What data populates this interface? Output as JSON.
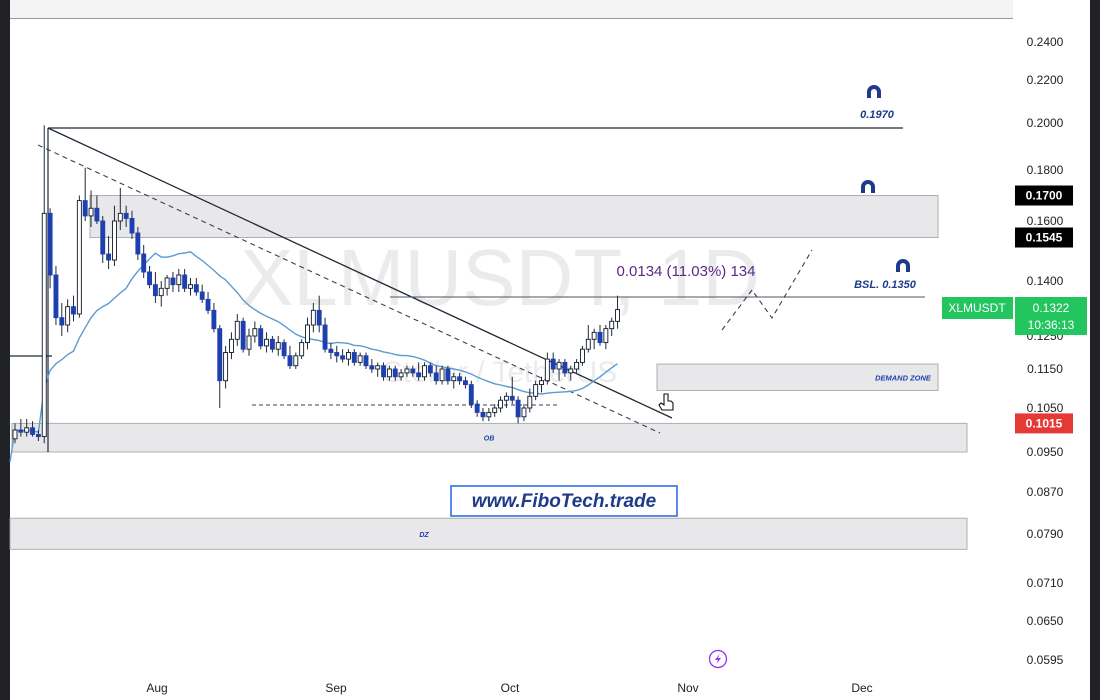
{
  "chart_data": {
    "type": "candlestick",
    "symbol": "XLMUSDT",
    "watermark_symbol": "XLMUSDT, 1D",
    "watermark_name": "Stellar / TetherUS",
    "x_labels": [
      "Aug",
      "Sep",
      "Oct",
      "Nov",
      "Dec"
    ],
    "y_ticks": [
      "0.2400",
      "0.2200",
      "0.2000",
      "0.1800",
      "0.1600",
      "0.1400",
      "0.1250",
      "0.1150",
      "0.1050",
      "0.0950",
      "0.0870",
      "0.0790",
      "0.0710",
      "0.0650",
      "0.0595"
    ],
    "price_badges": [
      {
        "label": "0.1700",
        "price": 0.17,
        "color": "#000000"
      },
      {
        "label": "0.1545",
        "price": 0.1545,
        "color": "#000000"
      },
      {
        "label": "0.1015",
        "price": 0.1015,
        "color": "#e53935"
      }
    ],
    "current": {
      "symbol": "XLMUSDT",
      "price": "0.1322",
      "countdown": "10:36:13",
      "color": "#22c55e"
    },
    "measure_label": "0.0134 (11.03%) 134",
    "levels": [
      {
        "label": "0.1970",
        "price": 0.197
      },
      {
        "label": "BSL. 0.1350",
        "price": 0.135
      }
    ],
    "zones": [
      {
        "label": "",
        "low": 0.1545,
        "high": 0.17
      },
      {
        "label": "DEMAND ZONE",
        "low": 0.1095,
        "high": 0.1165
      },
      {
        "label": "OB",
        "low": 0.095,
        "high": 0.1015
      },
      {
        "label": "DZ",
        "low": 0.0765,
        "high": 0.082
      }
    ],
    "watermark_link": "www.FiboTech.trade",
    "colors": {
      "up": "#ffffff",
      "down": "#1e40af",
      "wick": "#1f2937",
      "ma": "#5b9bd5",
      "accent": "#1e3a8a"
    },
    "candles": [
      {
        "o": 0.098,
        "h": 0.1015,
        "l": 0.097,
        "c": 0.1,
        "d": "Jul 22"
      },
      {
        "o": 0.1,
        "h": 0.1025,
        "l": 0.0985,
        "c": 0.0995,
        "d": "Jul 23"
      },
      {
        "o": 0.0995,
        "h": 0.1025,
        "l": 0.0985,
        "c": 0.1005,
        "d": "Jul 24"
      },
      {
        "o": 0.1005,
        "h": 0.102,
        "l": 0.0985,
        "c": 0.099,
        "d": "Jul 25"
      },
      {
        "o": 0.099,
        "h": 0.1,
        "l": 0.0975,
        "c": 0.0985,
        "d": "Jul 26"
      },
      {
        "o": 0.0985,
        "h": 0.199,
        "l": 0.097,
        "c": 0.163,
        "d": "Jul 27"
      },
      {
        "o": 0.163,
        "h": 0.165,
        "l": 0.138,
        "c": 0.142,
        "d": "Jul 28"
      },
      {
        "o": 0.142,
        "h": 0.145,
        "l": 0.128,
        "c": 0.13,
        "d": "Jul 29"
      },
      {
        "o": 0.13,
        "h": 0.134,
        "l": 0.125,
        "c": 0.128,
        "d": "Jul 30"
      },
      {
        "o": 0.128,
        "h": 0.135,
        "l": 0.126,
        "c": 0.133,
        "d": "Jul 31"
      },
      {
        "o": 0.133,
        "h": 0.136,
        "l": 0.129,
        "c": 0.131,
        "d": "Aug 1"
      },
      {
        "o": 0.131,
        "h": 0.17,
        "l": 0.13,
        "c": 0.168,
        "d": "Aug 2"
      },
      {
        "o": 0.168,
        "h": 0.181,
        "l": 0.16,
        "c": 0.162,
        "d": "Aug 3"
      },
      {
        "o": 0.162,
        "h": 0.172,
        "l": 0.158,
        "c": 0.165,
        "d": "Aug 4"
      },
      {
        "o": 0.165,
        "h": 0.17,
        "l": 0.159,
        "c": 0.16,
        "d": "Aug 5"
      },
      {
        "o": 0.16,
        "h": 0.162,
        "l": 0.146,
        "c": 0.149,
        "d": "Aug 6"
      },
      {
        "o": 0.149,
        "h": 0.155,
        "l": 0.144,
        "c": 0.147,
        "d": "Aug 7"
      },
      {
        "o": 0.147,
        "h": 0.166,
        "l": 0.145,
        "c": 0.16,
        "d": "Aug 8"
      },
      {
        "o": 0.16,
        "h": 0.173,
        "l": 0.157,
        "c": 0.163,
        "d": "Aug 9"
      },
      {
        "o": 0.163,
        "h": 0.166,
        "l": 0.158,
        "c": 0.161,
        "d": "Aug 10"
      },
      {
        "o": 0.161,
        "h": 0.164,
        "l": 0.154,
        "c": 0.156,
        "d": "Aug 11"
      },
      {
        "o": 0.156,
        "h": 0.158,
        "l": 0.147,
        "c": 0.149,
        "d": "Aug 12"
      },
      {
        "o": 0.149,
        "h": 0.152,
        "l": 0.141,
        "c": 0.143,
        "d": "Aug 13"
      },
      {
        "o": 0.143,
        "h": 0.145,
        "l": 0.138,
        "c": 0.139,
        "d": "Aug 14"
      },
      {
        "o": 0.139,
        "h": 0.143,
        "l": 0.134,
        "c": 0.136,
        "d": "Aug 15"
      },
      {
        "o": 0.136,
        "h": 0.14,
        "l": 0.133,
        "c": 0.138,
        "d": "Aug 16"
      },
      {
        "o": 0.138,
        "h": 0.142,
        "l": 0.136,
        "c": 0.141,
        "d": "Aug 17"
      },
      {
        "o": 0.141,
        "h": 0.143,
        "l": 0.137,
        "c": 0.139,
        "d": "Aug 18"
      },
      {
        "o": 0.139,
        "h": 0.144,
        "l": 0.137,
        "c": 0.142,
        "d": "Aug 19"
      },
      {
        "o": 0.142,
        "h": 0.144,
        "l": 0.137,
        "c": 0.138,
        "d": "Aug 20"
      },
      {
        "o": 0.138,
        "h": 0.141,
        "l": 0.136,
        "c": 0.139,
        "d": "Aug 21"
      },
      {
        "o": 0.139,
        "h": 0.141,
        "l": 0.136,
        "c": 0.137,
        "d": "Aug 22"
      },
      {
        "o": 0.137,
        "h": 0.139,
        "l": 0.134,
        "c": 0.135,
        "d": "Aug 23"
      },
      {
        "o": 0.135,
        "h": 0.137,
        "l": 0.131,
        "c": 0.132,
        "d": "Aug 24"
      },
      {
        "o": 0.132,
        "h": 0.134,
        "l": 0.126,
        "c": 0.127,
        "d": "Aug 25"
      },
      {
        "o": 0.127,
        "h": 0.128,
        "l": 0.105,
        "c": 0.112,
        "d": "Aug 26"
      },
      {
        "o": 0.112,
        "h": 0.122,
        "l": 0.11,
        "c": 0.12,
        "d": "Aug 27"
      },
      {
        "o": 0.12,
        "h": 0.126,
        "l": 0.118,
        "c": 0.124,
        "d": "Aug 28"
      },
      {
        "o": 0.124,
        "h": 0.131,
        "l": 0.122,
        "c": 0.129,
        "d": "Aug 29"
      },
      {
        "o": 0.129,
        "h": 0.13,
        "l": 0.12,
        "c": 0.121,
        "d": "Aug 30"
      },
      {
        "o": 0.121,
        "h": 0.127,
        "l": 0.119,
        "c": 0.125,
        "d": "Aug 31"
      },
      {
        "o": 0.125,
        "h": 0.129,
        "l": 0.123,
        "c": 0.127,
        "d": "Sep 1"
      },
      {
        "o": 0.127,
        "h": 0.128,
        "l": 0.121,
        "c": 0.122,
        "d": "Sep 2"
      },
      {
        "o": 0.122,
        "h": 0.126,
        "l": 0.12,
        "c": 0.124,
        "d": "Sep 3"
      },
      {
        "o": 0.124,
        "h": 0.125,
        "l": 0.12,
        "c": 0.121,
        "d": "Sep 4"
      },
      {
        "o": 0.121,
        "h": 0.125,
        "l": 0.119,
        "c": 0.123,
        "d": "Sep 5"
      },
      {
        "o": 0.123,
        "h": 0.124,
        "l": 0.118,
        "c": 0.119,
        "d": "Sep 6"
      },
      {
        "o": 0.119,
        "h": 0.122,
        "l": 0.115,
        "c": 0.116,
        "d": "Sep 7"
      },
      {
        "o": 0.116,
        "h": 0.12,
        "l": 0.115,
        "c": 0.119,
        "d": "Sep 8"
      },
      {
        "o": 0.119,
        "h": 0.124,
        "l": 0.118,
        "c": 0.123,
        "d": "Sep 9"
      },
      {
        "o": 0.123,
        "h": 0.13,
        "l": 0.121,
        "c": 0.128,
        "d": "Sep 10"
      },
      {
        "o": 0.128,
        "h": 0.134,
        "l": 0.126,
        "c": 0.132,
        "d": "Sep 11"
      },
      {
        "o": 0.132,
        "h": 0.136,
        "l": 0.126,
        "c": 0.128,
        "d": "Sep 12"
      },
      {
        "o": 0.128,
        "h": 0.13,
        "l": 0.12,
        "c": 0.121,
        "d": "Sep 13"
      },
      {
        "o": 0.121,
        "h": 0.123,
        "l": 0.118,
        "c": 0.12,
        "d": "Sep 14"
      },
      {
        "o": 0.12,
        "h": 0.122,
        "l": 0.117,
        "c": 0.119,
        "d": "Sep 15"
      },
      {
        "o": 0.119,
        "h": 0.121,
        "l": 0.117,
        "c": 0.118,
        "d": "Sep 16"
      },
      {
        "o": 0.118,
        "h": 0.121,
        "l": 0.116,
        "c": 0.12,
        "d": "Sep 17"
      },
      {
        "o": 0.12,
        "h": 0.121,
        "l": 0.116,
        "c": 0.117,
        "d": "Sep 18"
      },
      {
        "o": 0.117,
        "h": 0.12,
        "l": 0.116,
        "c": 0.119,
        "d": "Sep 19"
      },
      {
        "o": 0.119,
        "h": 0.12,
        "l": 0.115,
        "c": 0.116,
        "d": "Sep 20"
      },
      {
        "o": 0.116,
        "h": 0.118,
        "l": 0.114,
        "c": 0.115,
        "d": "Sep 21"
      },
      {
        "o": 0.115,
        "h": 0.117,
        "l": 0.113,
        "c": 0.116,
        "d": "Sep 22"
      },
      {
        "o": 0.116,
        "h": 0.117,
        "l": 0.112,
        "c": 0.113,
        "d": "Sep 23"
      },
      {
        "o": 0.113,
        "h": 0.116,
        "l": 0.112,
        "c": 0.115,
        "d": "Sep 24"
      },
      {
        "o": 0.115,
        "h": 0.116,
        "l": 0.112,
        "c": 0.113,
        "d": "Sep 25"
      },
      {
        "o": 0.113,
        "h": 0.115,
        "l": 0.112,
        "c": 0.114,
        "d": "Sep 26"
      },
      {
        "o": 0.114,
        "h": 0.116,
        "l": 0.113,
        "c": 0.115,
        "d": "Sep 27"
      },
      {
        "o": 0.115,
        "h": 0.116,
        "l": 0.113,
        "c": 0.114,
        "d": "Sep 28"
      },
      {
        "o": 0.114,
        "h": 0.117,
        "l": 0.112,
        "c": 0.113,
        "d": "Sep 29"
      },
      {
        "o": 0.113,
        "h": 0.117,
        "l": 0.112,
        "c": 0.116,
        "d": "Sep 30"
      },
      {
        "o": 0.116,
        "h": 0.117,
        "l": 0.113,
        "c": 0.114,
        "d": "Oct 1"
      },
      {
        "o": 0.114,
        "h": 0.116,
        "l": 0.111,
        "c": 0.112,
        "d": "Oct 2"
      },
      {
        "o": 0.112,
        "h": 0.116,
        "l": 0.111,
        "c": 0.115,
        "d": "Oct 3"
      },
      {
        "o": 0.115,
        "h": 0.116,
        "l": 0.111,
        "c": 0.112,
        "d": "Oct 4"
      },
      {
        "o": 0.112,
        "h": 0.114,
        "l": 0.11,
        "c": 0.113,
        "d": "Oct 5"
      },
      {
        "o": 0.113,
        "h": 0.114,
        "l": 0.111,
        "c": 0.112,
        "d": "Oct 6"
      },
      {
        "o": 0.112,
        "h": 0.113,
        "l": 0.11,
        "c": 0.111,
        "d": "Oct 7"
      },
      {
        "o": 0.111,
        "h": 0.112,
        "l": 0.105,
        "c": 0.106,
        "d": "Oct 8"
      },
      {
        "o": 0.106,
        "h": 0.107,
        "l": 0.103,
        "c": 0.104,
        "d": "Oct 9"
      },
      {
        "o": 0.104,
        "h": 0.105,
        "l": 0.102,
        "c": 0.103,
        "d": "Oct 10"
      },
      {
        "o": 0.103,
        "h": 0.105,
        "l": 0.102,
        "c": 0.104,
        "d": "Oct 11"
      },
      {
        "o": 0.104,
        "h": 0.106,
        "l": 0.103,
        "c": 0.105,
        "d": "Oct 12"
      },
      {
        "o": 0.105,
        "h": 0.108,
        "l": 0.104,
        "c": 0.107,
        "d": "Oct 13"
      },
      {
        "o": 0.107,
        "h": 0.109,
        "l": 0.105,
        "c": 0.108,
        "d": "Oct 14"
      },
      {
        "o": 0.108,
        "h": 0.113,
        "l": 0.106,
        "c": 0.107,
        "d": "Oct 15"
      },
      {
        "o": 0.107,
        "h": 0.108,
        "l": 0.1015,
        "c": 0.103,
        "d": "Oct 16"
      },
      {
        "o": 0.103,
        "h": 0.106,
        "l": 0.102,
        "c": 0.105,
        "d": "Oct 17"
      },
      {
        "o": 0.105,
        "h": 0.11,
        "l": 0.104,
        "c": 0.108,
        "d": "Oct 18"
      },
      {
        "o": 0.108,
        "h": 0.112,
        "l": 0.107,
        "c": 0.111,
        "d": "Oct 19"
      },
      {
        "o": 0.111,
        "h": 0.113,
        "l": 0.109,
        "c": 0.112,
        "d": "Oct 20"
      },
      {
        "o": 0.112,
        "h": 0.12,
        "l": 0.111,
        "c": 0.118,
        "d": "Oct 21"
      },
      {
        "o": 0.118,
        "h": 0.12,
        "l": 0.114,
        "c": 0.115,
        "d": "Oct 22"
      },
      {
        "o": 0.115,
        "h": 0.118,
        "l": 0.112,
        "c": 0.117,
        "d": "Oct 23"
      },
      {
        "o": 0.117,
        "h": 0.118,
        "l": 0.113,
        "c": 0.114,
        "d": "Oct 24"
      },
      {
        "o": 0.114,
        "h": 0.116,
        "l": 0.112,
        "c": 0.115,
        "d": "Oct 25"
      },
      {
        "o": 0.115,
        "h": 0.118,
        "l": 0.114,
        "c": 0.117,
        "d": "Oct 26"
      },
      {
        "o": 0.117,
        "h": 0.122,
        "l": 0.116,
        "c": 0.121,
        "d": "Oct 27"
      },
      {
        "o": 0.121,
        "h": 0.128,
        "l": 0.12,
        "c": 0.124,
        "d": "Oct 28"
      },
      {
        "o": 0.124,
        "h": 0.127,
        "l": 0.121,
        "c": 0.126,
        "d": "Oct 29"
      },
      {
        "o": 0.126,
        "h": 0.128,
        "l": 0.122,
        "c": 0.123,
        "d": "Oct 30"
      },
      {
        "o": 0.123,
        "h": 0.128,
        "l": 0.121,
        "c": 0.127,
        "d": "Oct 31"
      },
      {
        "o": 0.127,
        "h": 0.13,
        "l": 0.125,
        "c": 0.129,
        "d": "Nov 1"
      },
      {
        "o": 0.129,
        "h": 0.136,
        "l": 0.127,
        "c": 0.1322,
        "d": "Nov 2"
      }
    ]
  }
}
